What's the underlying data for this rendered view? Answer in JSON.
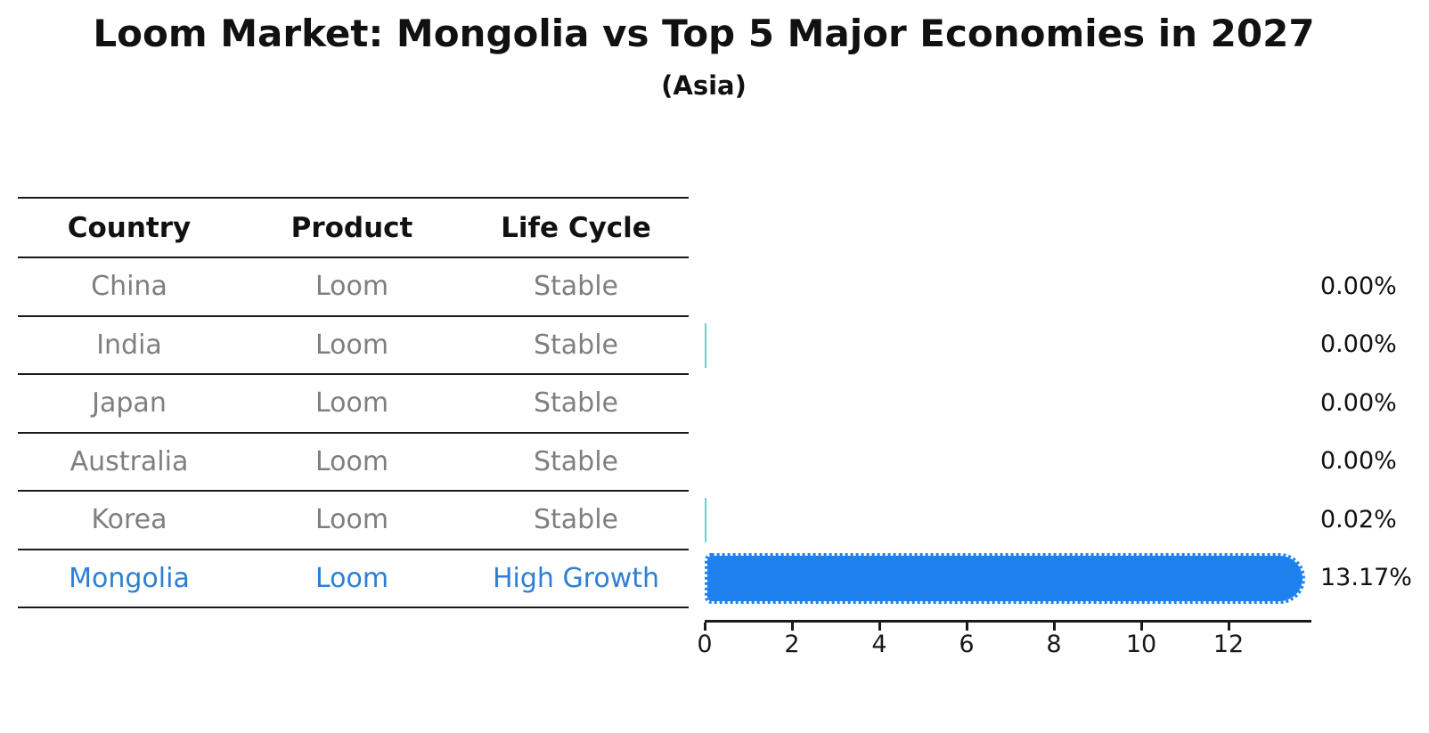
{
  "title": "Loom Market: Mongolia vs Top 5 Major Economies in 2027",
  "subtitle": "(Asia)",
  "table": {
    "headers": [
      "Country",
      "Product",
      "Life Cycle"
    ],
    "rows": [
      {
        "country": "China",
        "product": "Loom",
        "life_cycle": "Stable"
      },
      {
        "country": "India",
        "product": "Loom",
        "life_cycle": "Stable"
      },
      {
        "country": "Japan",
        "product": "Loom",
        "life_cycle": "Stable"
      },
      {
        "country": "Australia",
        "product": "Loom",
        "life_cycle": "Stable"
      },
      {
        "country": "Korea",
        "product": "Loom",
        "life_cycle": "Stable"
      },
      {
        "country": "Mongolia",
        "product": "Loom",
        "life_cycle": "High Growth"
      }
    ],
    "highlighted_country": "Mongolia"
  },
  "chart_data": {
    "type": "bar",
    "orientation": "horizontal",
    "title": "Loom Market: Mongolia vs Top 5 Major Economies in 2027",
    "subtitle": "(Asia)",
    "categories": [
      "China",
      "India",
      "Japan",
      "Australia",
      "Korea",
      "Mongolia"
    ],
    "values": [
      0.0,
      0.0,
      0.0,
      0.0,
      0.02,
      13.17
    ],
    "value_labels": [
      "0.00%",
      "0.00%",
      "0.00%",
      "0.00%",
      "0.02%",
      "13.17%"
    ],
    "bars_visible": [
      false,
      true,
      false,
      false,
      true,
      true
    ],
    "highlight_index": 5,
    "x_ticks": [
      0,
      2,
      4,
      6,
      8,
      10,
      12
    ],
    "xlim": [
      0,
      13.9
    ],
    "xlabel": "",
    "ylabel": "",
    "grid": false,
    "legend": false
  },
  "colors": {
    "bar_highlight": "#1d82ee",
    "bar_default": "#63d6c4",
    "highlight_text": "#2e7fd4",
    "row_text": "#7f7f7f",
    "header_text": "#111111",
    "axis_line": "#1a1a1a"
  }
}
